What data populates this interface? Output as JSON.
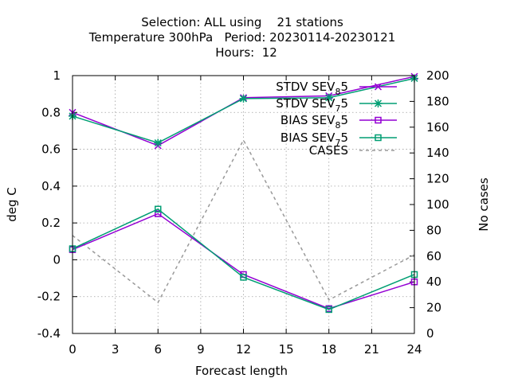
{
  "chart_data": {
    "type": "line",
    "title_lines": [
      "Selection: ALL using    21 stations",
      "Temperature 300hPa   Period: 20230114-20230121",
      "Hours:  12"
    ],
    "xlabel": "Forecast length",
    "ylabel": "deg C",
    "y2label": "No cases",
    "xlim": [
      0,
      24
    ],
    "ylim": [
      -0.4,
      1
    ],
    "y2lim": [
      0,
      200
    ],
    "x_ticks": [
      "0",
      "3",
      "6",
      "9",
      "12",
      "15",
      "18",
      "21",
      "24"
    ],
    "y_ticks": [
      "-0.4",
      "-0.2",
      "0",
      "0.2",
      "0.4",
      "0.6",
      "0.8",
      "1"
    ],
    "y2_ticks": [
      "0",
      "20",
      "40",
      "60",
      "80",
      "100",
      "120",
      "140",
      "160",
      "180",
      "200"
    ],
    "grid": true,
    "legend_position": "top-right",
    "x": [
      0,
      6,
      12,
      18,
      24
    ],
    "series": [
      {
        "name": "STDV SEV_8 5",
        "label_main": "STDV SEV",
        "label_sub": "8",
        "label_tail": "5",
        "axis": "y1",
        "color": "#9400d3",
        "marker": "x",
        "values": [
          0.8,
          0.62,
          0.88,
          0.89,
          0.995
        ]
      },
      {
        "name": "STDV SEV_7 5",
        "label_main": "STDV SEV",
        "label_sub": "7",
        "label_tail": "5",
        "axis": "y1",
        "color": "#009e73",
        "marker": "star",
        "values": [
          0.78,
          0.635,
          0.875,
          0.88,
          0.985
        ]
      },
      {
        "name": "BIAS SEV_8 5",
        "label_main": "BIAS SEV",
        "label_sub": "8",
        "label_tail": "5",
        "axis": "y1",
        "color": "#9400d3",
        "marker": "square",
        "values": [
          0.055,
          0.25,
          -0.08,
          -0.265,
          -0.12
        ]
      },
      {
        "name": "BIAS SEV_7 5",
        "label_main": "BIAS SEV",
        "label_sub": "7",
        "label_tail": "5",
        "axis": "y1",
        "color": "#009e73",
        "marker": "square",
        "values": [
          0.06,
          0.275,
          -0.095,
          -0.27,
          -0.08
        ]
      },
      {
        "name": "CASES",
        "label_main": "CASES",
        "label_sub": "",
        "label_tail": "",
        "axis": "y2",
        "color": "#999999",
        "marker": "none",
        "dashed": true,
        "values": [
          76,
          24,
          150,
          26,
          61
        ]
      }
    ]
  }
}
